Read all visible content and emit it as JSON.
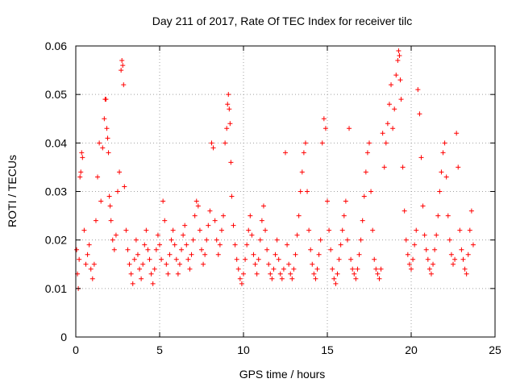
{
  "chart_data": {
    "type": "scatter",
    "title": "Day 211 of 2017, Rate Of TEC Index for receiver tilc",
    "xlabel": "GPS time / hours",
    "ylabel": "ROTI / TECUs",
    "xlim": [
      0,
      25
    ],
    "ylim": [
      0,
      0.06
    ],
    "x_ticks": [
      0,
      5,
      10,
      15,
      20,
      25
    ],
    "x_tick_labels": [
      "0",
      "5",
      "10",
      "15",
      "20",
      "25"
    ],
    "y_ticks": [
      0,
      0.01,
      0.02,
      0.03,
      0.04,
      0.05,
      0.06
    ],
    "y_tick_labels": [
      "0",
      "0.01",
      "0.02",
      "0.03",
      "0.04",
      "0.05",
      "0.06"
    ],
    "grid": true,
    "marker": "+",
    "color": "#ff0000",
    "x_extent": [
      0,
      23.7
    ],
    "density_note": "Dense cloud of ROTI points per satellite arc; values mostly 0.007-0.03 TECU/min",
    "series": [
      {
        "name": "ROTI",
        "x": [
          0.05,
          0.1,
          0.15,
          0.2,
          0.25,
          0.3,
          0.35,
          0.4,
          0.5,
          0.6,
          0.7,
          0.8,
          0.9,
          1.0,
          1.1,
          1.2,
          1.3,
          1.4,
          1.5,
          1.6,
          1.7,
          1.75,
          1.8,
          1.85,
          1.9,
          1.95,
          2.0,
          2.05,
          2.1,
          2.2,
          2.3,
          2.4,
          2.5,
          2.6,
          2.7,
          2.75,
          2.8,
          2.85,
          2.9,
          3.0,
          3.1,
          3.2,
          3.3,
          3.4,
          3.5,
          3.6,
          3.7,
          3.8,
          3.9,
          4.0,
          4.1,
          4.2,
          4.3,
          4.4,
          4.5,
          4.6,
          4.7,
          4.8,
          4.9,
          5.0,
          5.1,
          5.2,
          5.3,
          5.4,
          5.5,
          5.6,
          5.7,
          5.8,
          5.9,
          6.0,
          6.1,
          6.2,
          6.3,
          6.4,
          6.5,
          6.6,
          6.7,
          6.8,
          6.9,
          7.0,
          7.1,
          7.2,
          7.3,
          7.4,
          7.5,
          7.6,
          7.7,
          7.8,
          7.9,
          8.0,
          8.1,
          8.2,
          8.3,
          8.4,
          8.5,
          8.6,
          8.7,
          8.8,
          8.9,
          9.0,
          9.05,
          9.1,
          9.15,
          9.2,
          9.25,
          9.3,
          9.4,
          9.5,
          9.6,
          9.7,
          9.8,
          9.9,
          10.0,
          10.1,
          10.2,
          10.3,
          10.4,
          10.5,
          10.6,
          10.7,
          10.8,
          10.9,
          11.0,
          11.1,
          11.2,
          11.3,
          11.4,
          11.5,
          11.6,
          11.7,
          11.8,
          11.9,
          12.0,
          12.1,
          12.2,
          12.3,
          12.4,
          12.5,
          12.6,
          12.7,
          12.8,
          12.9,
          13.0,
          13.1,
          13.2,
          13.3,
          13.4,
          13.5,
          13.6,
          13.7,
          13.8,
          13.9,
          14.0,
          14.1,
          14.2,
          14.3,
          14.4,
          14.5,
          14.6,
          14.7,
          14.8,
          14.9,
          15.0,
          15.1,
          15.2,
          15.3,
          15.4,
          15.5,
          15.6,
          15.7,
          15.8,
          15.9,
          16.0,
          16.1,
          16.2,
          16.3,
          16.4,
          16.5,
          16.6,
          16.7,
          16.8,
          16.9,
          17.0,
          17.1,
          17.2,
          17.3,
          17.4,
          17.5,
          17.6,
          17.7,
          17.8,
          17.9,
          18.0,
          18.1,
          18.2,
          18.3,
          18.4,
          18.5,
          18.6,
          18.7,
          18.8,
          18.9,
          19.0,
          19.1,
          19.2,
          19.25,
          19.3,
          19.35,
          19.4,
          19.5,
          19.6,
          19.7,
          19.8,
          19.9,
          20.0,
          20.1,
          20.2,
          20.3,
          20.4,
          20.5,
          20.6,
          20.7,
          20.8,
          20.9,
          21.0,
          21.1,
          21.2,
          21.3,
          21.4,
          21.5,
          21.6,
          21.7,
          21.8,
          21.9,
          22.0,
          22.1,
          22.2,
          22.3,
          22.4,
          22.5,
          22.6,
          22.7,
          22.8,
          22.9,
          23.0,
          23.1,
          23.2,
          23.3,
          23.4,
          23.5,
          23.6,
          23.7
        ],
        "y": [
          0.018,
          0.013,
          0.01,
          0.016,
          0.033,
          0.034,
          0.038,
          0.037,
          0.022,
          0.015,
          0.017,
          0.019,
          0.014,
          0.012,
          0.015,
          0.024,
          0.033,
          0.04,
          0.028,
          0.039,
          0.045,
          0.049,
          0.049,
          0.043,
          0.041,
          0.038,
          0.029,
          0.027,
          0.024,
          0.02,
          0.018,
          0.021,
          0.03,
          0.034,
          0.055,
          0.057,
          0.056,
          0.052,
          0.031,
          0.022,
          0.018,
          0.015,
          0.013,
          0.011,
          0.016,
          0.02,
          0.017,
          0.014,
          0.012,
          0.015,
          0.019,
          0.022,
          0.018,
          0.016,
          0.013,
          0.011,
          0.014,
          0.018,
          0.021,
          0.019,
          0.016,
          0.028,
          0.024,
          0.015,
          0.013,
          0.017,
          0.02,
          0.022,
          0.019,
          0.016,
          0.013,
          0.015,
          0.018,
          0.021,
          0.023,
          0.019,
          0.016,
          0.014,
          0.017,
          0.02,
          0.025,
          0.028,
          0.027,
          0.022,
          0.018,
          0.015,
          0.017,
          0.02,
          0.023,
          0.026,
          0.04,
          0.039,
          0.024,
          0.02,
          0.017,
          0.019,
          0.022,
          0.025,
          0.04,
          0.043,
          0.048,
          0.05,
          0.047,
          0.044,
          0.036,
          0.029,
          0.023,
          0.019,
          0.016,
          0.014,
          0.012,
          0.011,
          0.013,
          0.016,
          0.019,
          0.022,
          0.025,
          0.021,
          0.017,
          0.015,
          0.013,
          0.016,
          0.02,
          0.024,
          0.027,
          0.022,
          0.018,
          0.015,
          0.013,
          0.012,
          0.014,
          0.017,
          0.02,
          0.016,
          0.013,
          0.012,
          0.014,
          0.038,
          0.019,
          0.015,
          0.013,
          0.012,
          0.014,
          0.017,
          0.021,
          0.025,
          0.03,
          0.034,
          0.038,
          0.04,
          0.03,
          0.022,
          0.018,
          0.015,
          0.013,
          0.012,
          0.014,
          0.017,
          0.02,
          0.04,
          0.045,
          0.043,
          0.028,
          0.022,
          0.018,
          0.014,
          0.012,
          0.011,
          0.013,
          0.016,
          0.019,
          0.022,
          0.025,
          0.028,
          0.02,
          0.043,
          0.016,
          0.014,
          0.013,
          0.012,
          0.014,
          0.017,
          0.02,
          0.024,
          0.029,
          0.034,
          0.038,
          0.04,
          0.03,
          0.022,
          0.016,
          0.014,
          0.013,
          0.012,
          0.014,
          0.042,
          0.035,
          0.04,
          0.044,
          0.048,
          0.052,
          0.043,
          0.047,
          0.054,
          0.057,
          0.059,
          0.058,
          0.053,
          0.049,
          0.035,
          0.026,
          0.02,
          0.017,
          0.015,
          0.014,
          0.016,
          0.019,
          0.022,
          0.051,
          0.046,
          0.037,
          0.027,
          0.021,
          0.018,
          0.016,
          0.014,
          0.013,
          0.015,
          0.018,
          0.021,
          0.025,
          0.03,
          0.034,
          0.038,
          0.04,
          0.033,
          0.025,
          0.02,
          0.017,
          0.015,
          0.016,
          0.042,
          0.035,
          0.022,
          0.018,
          0.016,
          0.014,
          0.013,
          0.017,
          0.022,
          0.026,
          0.019
        ]
      }
    ]
  }
}
